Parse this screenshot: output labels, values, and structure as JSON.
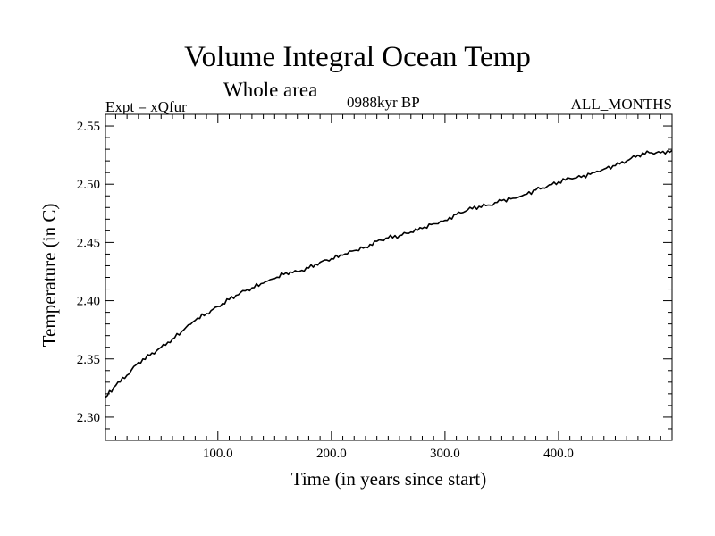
{
  "chart_data": {
    "type": "line",
    "title": "Volume Integral Ocean Temp",
    "subtitle": "Whole area",
    "annotations": {
      "left": "Expt = xQfur",
      "center": "0988kyr BP",
      "right": "ALL_MONTHS"
    },
    "xlabel": "Time (in years since start)",
    "ylabel": "Temperature (in C)",
    "xlim": [
      1,
      500
    ],
    "ylim": [
      2.28,
      2.56
    ],
    "xticks": [
      100,
      200,
      300,
      400
    ],
    "xtick_labels": [
      "100.0",
      "200.0",
      "300.0",
      "400.0"
    ],
    "yticks": [
      2.3,
      2.35,
      2.4,
      2.45,
      2.5,
      2.55
    ],
    "ytick_labels": [
      "2.30",
      "2.35",
      "2.40",
      "2.45",
      "2.50",
      "2.55"
    ],
    "grid": false,
    "series": [
      {
        "name": "Volume Integral Ocean Temp",
        "color": "#000000",
        "x": [
          1,
          10,
          20,
          30,
          40,
          50,
          60,
          70,
          80,
          90,
          100,
          110,
          120,
          130,
          140,
          150,
          160,
          170,
          180,
          190,
          200,
          210,
          220,
          230,
          240,
          250,
          260,
          270,
          280,
          290,
          300,
          310,
          320,
          330,
          340,
          350,
          360,
          370,
          380,
          390,
          400,
          410,
          420,
          430,
          440,
          450,
          460,
          470,
          480,
          490,
          500
        ],
        "values": [
          2.317,
          2.327,
          2.336,
          2.347,
          2.353,
          2.36,
          2.367,
          2.375,
          2.383,
          2.389,
          2.395,
          2.401,
          2.407,
          2.411,
          2.415,
          2.419,
          2.424,
          2.425,
          2.428,
          2.433,
          2.436,
          2.439,
          2.443,
          2.446,
          2.451,
          2.454,
          2.456,
          2.459,
          2.462,
          2.466,
          2.469,
          2.474,
          2.478,
          2.481,
          2.482,
          2.486,
          2.488,
          2.491,
          2.495,
          2.498,
          2.502,
          2.505,
          2.506,
          2.51,
          2.513,
          2.516,
          2.52,
          2.525,
          2.527,
          2.527,
          2.529
        ]
      }
    ]
  }
}
